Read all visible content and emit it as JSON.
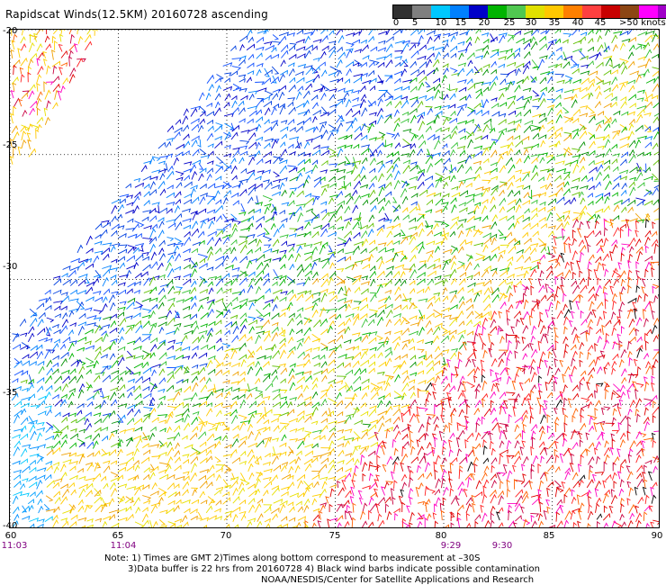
{
  "title": "Rapidscat Winds(12.5KM) 20160728 ascending",
  "legend": {
    "colors": [
      "#303030",
      "#7f7f7f",
      "#00c8ff",
      "#0080ff",
      "#0000c8",
      "#00b400",
      "#50c850",
      "#e0e000",
      "#ffc800",
      "#ff8000",
      "#ff4040",
      "#c80000",
      "#8c4614",
      "#ff00ff",
      "#a000c8",
      "#50009a"
    ],
    "labels": [
      "0",
      "5",
      "10",
      "15",
      "20",
      "25",
      "30",
      "35",
      "40",
      "45"
    ],
    "last_label": ">50 knots"
  },
  "map": {
    "lat_labels": [
      "-20",
      "-25",
      "-30",
      "-35",
      "-40"
    ],
    "lon_labels": [
      "60",
      "65",
      "70",
      "75",
      "80",
      "85",
      "90"
    ],
    "lat_ticks": [
      -20,
      -25,
      -30,
      -35,
      -40
    ],
    "lon_ticks": [
      60,
      65,
      70,
      75,
      80,
      85,
      90
    ],
    "lon_range": [
      60,
      90
    ],
    "lat_range": [
      -20,
      -40
    ],
    "times": [
      {
        "label": "11:03",
        "lon": 60
      },
      {
        "label": "11:04",
        "lon": 65
      },
      {
        "label": "9:29",
        "lon": 80
      },
      {
        "label": "9:30",
        "lon": 82.5
      }
    ]
  },
  "notes": {
    "line1": "Note: 1) Times are GMT 2)Times along bottom correspond to measurement at –30S",
    "line2": "3)Data buffer is 22 hrs from 20160728 4) Black wind barbs indicate possible contamination",
    "line3": "NOAA/NESDIS/Center for Satellite Applications and Research"
  }
}
